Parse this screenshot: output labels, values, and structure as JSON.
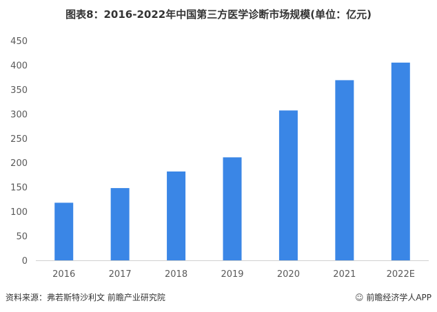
{
  "title": "图表8：2016-2022年中国第三方医学诊断市场规模(单位：亿元)",
  "footer": {
    "source": "资料来源：弗若斯特沙利文 前瞻产业研究院",
    "credit_icon": "☺",
    "credit": "前瞻经济学人APP"
  },
  "colors": {
    "bar": "#3a86e6",
    "axis": "#d0d0d0",
    "text": "#595959"
  },
  "chart_data": {
    "type": "bar",
    "title": "图表8：2016-2022年中国第三方医学诊断市场规模(单位：亿元)",
    "categories": [
      "2016",
      "2017",
      "2018",
      "2019",
      "2020",
      "2021",
      "2022E"
    ],
    "values": [
      118,
      148,
      182,
      211,
      307,
      369,
      405
    ],
    "ylim": [
      0,
      450
    ],
    "yticks": [
      0,
      50,
      100,
      150,
      200,
      250,
      300,
      350,
      400,
      450
    ],
    "xlabel": "",
    "ylabel": "",
    "grid": false,
    "legend": "none"
  }
}
